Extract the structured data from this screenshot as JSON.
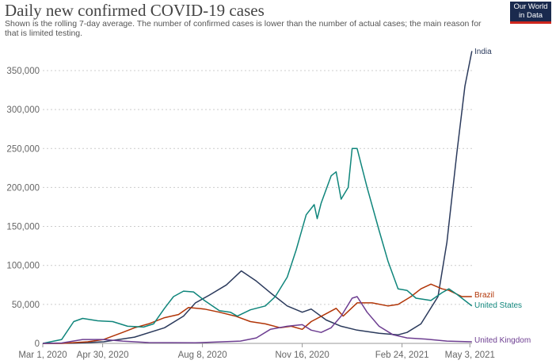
{
  "header": {
    "title": "Daily new confirmed COVID-19 cases",
    "subtitle": "Shown is the rolling 7-day average. The number of confirmed cases is lower than the number of actual cases; the main reason for that is limited testing.",
    "logo": "Our World in Data"
  },
  "chart_data": {
    "type": "line",
    "title": "Daily new confirmed COVID-19 cases",
    "xlim": [
      "2020-03-01",
      "2021-05-05"
    ],
    "ylim": [
      0,
      375000
    ],
    "grid": true,
    "legend": "line-end labels",
    "x_ticks": [
      "Mar 1, 2020",
      "Apr 30, 2020",
      "Aug 8, 2020",
      "Nov 16, 2020",
      "Feb 24, 2021",
      "May 3, 2021"
    ],
    "x_tick_dates": [
      "2020-03-01",
      "2020-04-30",
      "2020-08-08",
      "2020-11-16",
      "2021-02-24",
      "2021-05-03"
    ],
    "y_ticks": [
      0,
      50000,
      100000,
      150000,
      200000,
      250000,
      300000,
      350000
    ],
    "y_tick_labels": [
      "0",
      "50,000",
      "100,000",
      "150,000",
      "200,000",
      "250,000",
      "300,000",
      "350,000"
    ],
    "series": [
      {
        "name": "India",
        "color": "#2b3a5c",
        "points": [
          [
            "2020-03-01",
            0
          ],
          [
            "2020-04-01",
            200
          ],
          [
            "2020-05-01",
            2000
          ],
          [
            "2020-06-01",
            8000
          ],
          [
            "2020-07-01",
            20000
          ],
          [
            "2020-07-20",
            35000
          ],
          [
            "2020-08-01",
            52000
          ],
          [
            "2020-08-15",
            62000
          ],
          [
            "2020-09-01",
            75000
          ],
          [
            "2020-09-16",
            93000
          ],
          [
            "2020-10-01",
            80000
          ],
          [
            "2020-10-15",
            65000
          ],
          [
            "2020-11-01",
            48000
          ],
          [
            "2020-11-16",
            40000
          ],
          [
            "2020-11-25",
            44000
          ],
          [
            "2020-12-10",
            30000
          ],
          [
            "2020-12-25",
            22000
          ],
          [
            "2021-01-10",
            17000
          ],
          [
            "2021-02-01",
            13000
          ],
          [
            "2021-02-20",
            11000
          ],
          [
            "2021-03-01",
            14000
          ],
          [
            "2021-03-15",
            25000
          ],
          [
            "2021-04-01",
            60000
          ],
          [
            "2021-04-10",
            130000
          ],
          [
            "2021-04-20",
            245000
          ],
          [
            "2021-04-28",
            330000
          ],
          [
            "2021-05-05",
            375000
          ]
        ]
      },
      {
        "name": "Brazil",
        "color": "#b13507",
        "points": [
          [
            "2020-03-01",
            0
          ],
          [
            "2020-03-20",
            0
          ],
          [
            "2020-04-15",
            2000
          ],
          [
            "2020-05-01",
            5000
          ],
          [
            "2020-05-20",
            14000
          ],
          [
            "2020-06-01",
            20000
          ],
          [
            "2020-06-15",
            25000
          ],
          [
            "2020-07-01",
            33000
          ],
          [
            "2020-07-15",
            37000
          ],
          [
            "2020-07-25",
            46000
          ],
          [
            "2020-08-10",
            44000
          ],
          [
            "2020-08-25",
            40000
          ],
          [
            "2020-09-10",
            35000
          ],
          [
            "2020-09-25",
            28000
          ],
          [
            "2020-10-10",
            25000
          ],
          [
            "2020-10-25",
            20000
          ],
          [
            "2020-11-05",
            22000
          ],
          [
            "2020-11-16",
            18000
          ],
          [
            "2020-11-25",
            28000
          ],
          [
            "2020-12-10",
            38000
          ],
          [
            "2020-12-20",
            45000
          ],
          [
            "2020-12-27",
            35000
          ],
          [
            "2021-01-10",
            52000
          ],
          [
            "2021-01-25",
            52000
          ],
          [
            "2021-02-10",
            48000
          ],
          [
            "2021-02-20",
            50000
          ],
          [
            "2021-03-05",
            60000
          ],
          [
            "2021-03-15",
            70000
          ],
          [
            "2021-03-25",
            76000
          ],
          [
            "2021-04-05",
            70000
          ],
          [
            "2021-04-12",
            68000
          ],
          [
            "2021-04-25",
            60000
          ],
          [
            "2021-05-05",
            60000
          ]
        ]
      },
      {
        "name": "United States",
        "color": "#0f857b",
        "points": [
          [
            "2020-03-01",
            0
          ],
          [
            "2020-03-20",
            5000
          ],
          [
            "2020-04-01",
            28000
          ],
          [
            "2020-04-10",
            32000
          ],
          [
            "2020-04-25",
            29000
          ],
          [
            "2020-05-10",
            28000
          ],
          [
            "2020-05-25",
            22000
          ],
          [
            "2020-06-10",
            21000
          ],
          [
            "2020-06-20",
            25000
          ],
          [
            "2020-07-01",
            45000
          ],
          [
            "2020-07-10",
            60000
          ],
          [
            "2020-07-20",
            67000
          ],
          [
            "2020-07-30",
            66000
          ],
          [
            "2020-08-10",
            55000
          ],
          [
            "2020-08-25",
            42000
          ],
          [
            "2020-09-05",
            40000
          ],
          [
            "2020-09-12",
            35000
          ],
          [
            "2020-09-25",
            43000
          ],
          [
            "2020-10-10",
            48000
          ],
          [
            "2020-10-20",
            60000
          ],
          [
            "2020-11-01",
            85000
          ],
          [
            "2020-11-10",
            120000
          ],
          [
            "2020-11-20",
            165000
          ],
          [
            "2020-11-28",
            178000
          ],
          [
            "2020-12-01",
            160000
          ],
          [
            "2020-12-05",
            180000
          ],
          [
            "2020-12-15",
            215000
          ],
          [
            "2020-12-20",
            220000
          ],
          [
            "2020-12-25",
            185000
          ],
          [
            "2021-01-01",
            200000
          ],
          [
            "2021-01-05",
            250000
          ],
          [
            "2021-01-10",
            250000
          ],
          [
            "2021-01-20",
            200000
          ],
          [
            "2021-02-01",
            145000
          ],
          [
            "2021-02-10",
            105000
          ],
          [
            "2021-02-20",
            70000
          ],
          [
            "2021-03-01",
            68000
          ],
          [
            "2021-03-10",
            58000
          ],
          [
            "2021-03-25",
            55000
          ],
          [
            "2021-04-05",
            65000
          ],
          [
            "2021-04-12",
            70000
          ],
          [
            "2021-04-20",
            63000
          ],
          [
            "2021-05-05",
            48000
          ]
        ]
      },
      {
        "name": "United Kingdom",
        "color": "#6d3e91",
        "points": [
          [
            "2020-03-01",
            0
          ],
          [
            "2020-03-20",
            500
          ],
          [
            "2020-04-10",
            5000
          ],
          [
            "2020-05-01",
            5000
          ],
          [
            "2020-05-20",
            3000
          ],
          [
            "2020-06-15",
            1000
          ],
          [
            "2020-08-01",
            700
          ],
          [
            "2020-09-15",
            3000
          ],
          [
            "2020-10-01",
            7000
          ],
          [
            "2020-10-15",
            18000
          ],
          [
            "2020-11-01",
            22000
          ],
          [
            "2020-11-16",
            24000
          ],
          [
            "2020-11-25",
            17000
          ],
          [
            "2020-12-05",
            14000
          ],
          [
            "2020-12-15",
            20000
          ],
          [
            "2020-12-25",
            35000
          ],
          [
            "2021-01-05",
            58000
          ],
          [
            "2021-01-10",
            60000
          ],
          [
            "2021-01-20",
            40000
          ],
          [
            "2021-02-01",
            22000
          ],
          [
            "2021-02-15",
            11000
          ],
          [
            "2021-03-01",
            7000
          ],
          [
            "2021-03-20",
            5500
          ],
          [
            "2021-04-10",
            3000
          ],
          [
            "2021-05-05",
            2000
          ]
        ]
      }
    ]
  }
}
